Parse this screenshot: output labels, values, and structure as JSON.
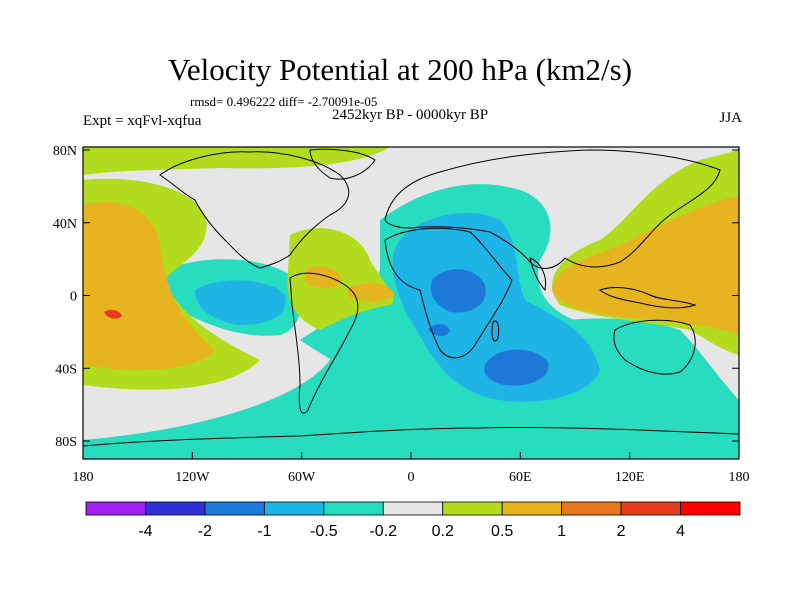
{
  "title": "Velocity Potential at 200 hPa (km2/s)",
  "stats": "rmsd= 0.496222 diff= -2.70091e-05",
  "period": "2452kyr BP - 0000kyr BP",
  "experiment": "Expt = xqFvl-xqfua",
  "season": "JJA",
  "lat_ticks": [
    "80N",
    "40N",
    "0",
    "40S",
    "80S"
  ],
  "lon_ticks": [
    "180",
    "120W",
    "60W",
    "0",
    "60E",
    "120E",
    "180"
  ],
  "colorbar": {
    "labels": [
      "-4",
      "-2",
      "-1",
      "-0.5",
      "-0.2",
      "0.2",
      "0.5",
      "1",
      "2",
      "4"
    ],
    "colors": [
      "#a020f0",
      "#3030d8",
      "#1e78d8",
      "#1eb4e6",
      "#28dcc0",
      "#e6e6e6",
      "#b4dc1e",
      "#e6b41e",
      "#e6781e",
      "#e63c1e",
      "#ff0000"
    ]
  },
  "field_colors": {
    "background": "#e6e6e6",
    "neg_weak": "#28dcc0",
    "neg_mid": "#1eb4e6",
    "neg_strong": "#1e78d8",
    "pos_weak": "#b4dc1e",
    "pos_mid": "#e6b41e",
    "pos_strong": "#e6781e",
    "pos_peak": "#e63c1e"
  }
}
